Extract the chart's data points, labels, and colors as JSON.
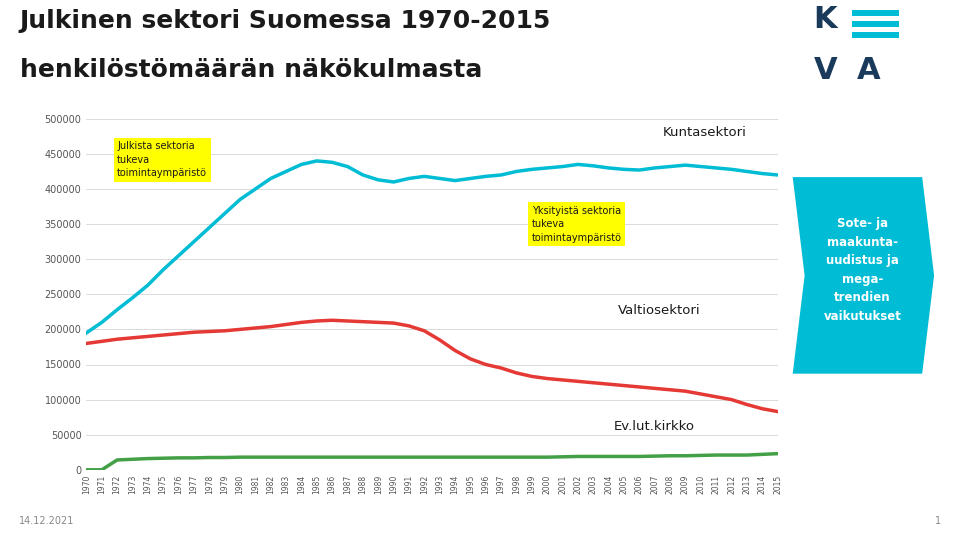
{
  "title_line1": "Julkinen sektori Suomessa 1970-2015",
  "title_line2": "henkilöstömäärän näkökulmasta",
  "title_color": "#1a1a1a",
  "background_color": "#ffffff",
  "plot_bg_color": "#ffffff",
  "years": [
    1970,
    1971,
    1972,
    1973,
    1974,
    1975,
    1976,
    1977,
    1978,
    1979,
    1980,
    1981,
    1982,
    1983,
    1984,
    1985,
    1986,
    1987,
    1988,
    1989,
    1990,
    1991,
    1992,
    1993,
    1994,
    1995,
    1996,
    1997,
    1998,
    1999,
    2000,
    2001,
    2002,
    2003,
    2004,
    2005,
    2006,
    2007,
    2008,
    2009,
    2010,
    2011,
    2012,
    2013,
    2014,
    2015
  ],
  "kuntasektori": [
    195000,
    210000,
    228000,
    245000,
    263000,
    285000,
    305000,
    325000,
    345000,
    365000,
    385000,
    400000,
    415000,
    425000,
    435000,
    440000,
    438000,
    432000,
    420000,
    413000,
    410000,
    415000,
    418000,
    415000,
    412000,
    415000,
    418000,
    420000,
    425000,
    428000,
    430000,
    432000,
    435000,
    433000,
    430000,
    428000,
    427000,
    430000,
    432000,
    434000,
    432000,
    430000,
    428000,
    425000,
    422000,
    420000
  ],
  "valtiosektori": [
    180000,
    183000,
    186000,
    188000,
    190000,
    192000,
    194000,
    196000,
    197000,
    198000,
    200000,
    202000,
    204000,
    207000,
    210000,
    212000,
    213000,
    212000,
    211000,
    210000,
    209000,
    205000,
    198000,
    185000,
    170000,
    158000,
    150000,
    145000,
    138000,
    133000,
    130000,
    128000,
    126000,
    124000,
    122000,
    120000,
    118000,
    116000,
    114000,
    112000,
    108000,
    104000,
    100000,
    93000,
    87000,
    83000
  ],
  "ev_lut": [
    0,
    0,
    14000,
    15000,
    16000,
    16500,
    17000,
    17000,
    17500,
    17500,
    18000,
    18000,
    18000,
    18000,
    18000,
    18000,
    18000,
    18000,
    18000,
    18000,
    18000,
    18000,
    18000,
    18000,
    18000,
    18000,
    18000,
    18000,
    18000,
    18000,
    18000,
    18500,
    19000,
    19000,
    19000,
    19000,
    19000,
    19500,
    20000,
    20000,
    20500,
    21000,
    21000,
    21000,
    22000,
    23000
  ],
  "kunta_color": "#00bcd4",
  "valtio_color": "#e53935",
  "ev_lut_color": "#43a047",
  "ylim_min": 0,
  "ylim_max": 500000,
  "yticks": [
    0,
    50000,
    100000,
    150000,
    200000,
    250000,
    300000,
    350000,
    400000,
    450000,
    500000
  ],
  "grid_color": "#cccccc",
  "tick_color": "#555555",
  "label_kuntasektori": "Kuntasektori",
  "label_valtiosektori": "Valtiosektori",
  "label_ev_lut": "Ev.lut.kirkko",
  "annotation_julkista": "Julkista sektoria\ntukeva\ntoimintaympäristö",
  "annotation_yksityista": "Yksityistä sektoria\ntukeva\ntoimintaympäristö",
  "sote_text": "Sote- ja\nmaakunta-\nuudistus ja\nmega-\ntrendien\nvaikutukset",
  "sote_bg_color": "#00bcd4",
  "sote_text_color": "#ffffff",
  "annotation_bg": "#ffff00",
  "line_width": 2.5,
  "date_text": "14.12.2021",
  "page_num": "1",
  "logo_ke_color": "#1a3a5c",
  "logo_bar_color": "#00bcd4",
  "separator_color": "#c8c8c8"
}
